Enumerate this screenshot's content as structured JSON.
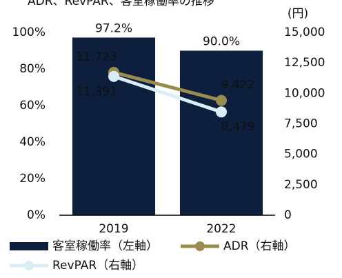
{
  "chart_data": {
    "type": "bar",
    "title": "ADR、RevPAR、客室稼働率の推移",
    "y2_unit": "(円)",
    "categories": [
      "2019",
      "2022"
    ],
    "series": [
      {
        "name": "客室稼働率（左軸）",
        "type": "bar",
        "color": "#0d1f3c",
        "values": [
          97.2,
          90.0
        ],
        "value_labels": [
          "97.2%",
          "90.0%"
        ]
      },
      {
        "name": "ADR（右軸）",
        "type": "line",
        "axis": "y2",
        "color": "#9a8b4f",
        "values": [
          11723,
          9422
        ],
        "value_labels": [
          "11,723",
          "9,422"
        ]
      },
      {
        "name": "RevPAR（右軸）",
        "type": "line",
        "axis": "y2",
        "color": "#d8edf8",
        "values": [
          11391,
          8479
        ],
        "value_labels": [
          "11,391",
          "8,479"
        ]
      }
    ],
    "ylim": [
      0,
      100
    ],
    "yticks": [
      {
        "value": 0,
        "label": "0%"
      },
      {
        "value": 20,
        "label": "20%"
      },
      {
        "value": 40,
        "label": "40%"
      },
      {
        "value": 60,
        "label": "60%"
      },
      {
        "value": 80,
        "label": "80%"
      },
      {
        "value": 100,
        "label": "100%"
      }
    ],
    "y2lim": [
      0,
      15000
    ],
    "y2ticks": [
      0,
      {
        "value": 2500,
        "label": "2,500"
      },
      {
        "value": 5000,
        "label": "5,000"
      },
      {
        "value": 7500,
        "label": "7,500"
      },
      {
        "value": 10000,
        "label": "10,000"
      },
      {
        "value": 12500,
        "label": "12,500"
      },
      {
        "value": 15000,
        "label": "15,000"
      }
    ]
  }
}
